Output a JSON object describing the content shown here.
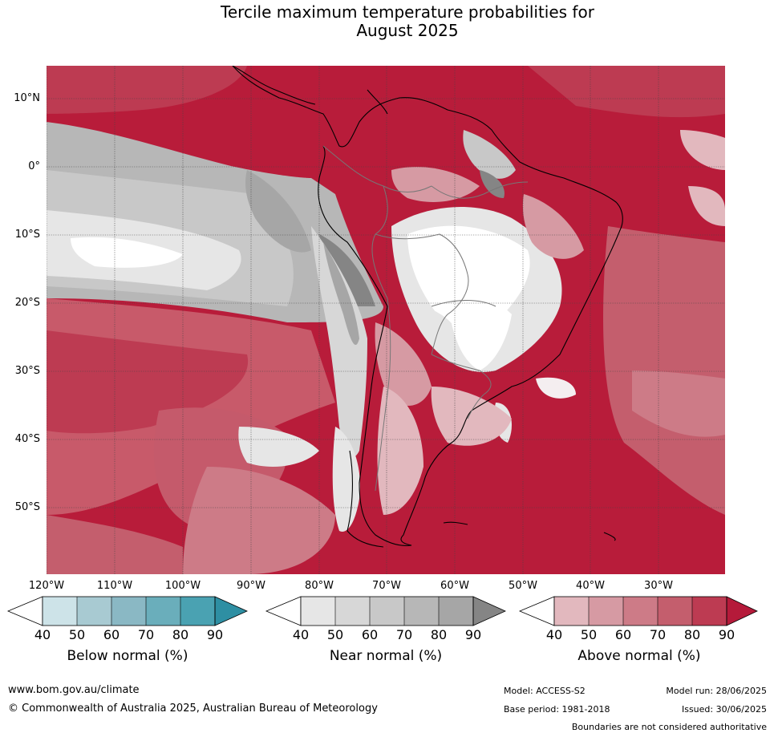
{
  "header": {
    "title_line1": "Tercile maximum temperature probabilities for",
    "title_line2": "August 2025"
  },
  "map": {
    "region": "South America",
    "lat_labels": [
      "10°N",
      "0°",
      "10°S",
      "20°S",
      "30°S",
      "40°S",
      "50°S"
    ],
    "lon_labels": [
      "120°W",
      "110°W",
      "100°W",
      "90°W",
      "80°W",
      "70°W",
      "60°W",
      "50°W",
      "40°W",
      "30°W"
    ],
    "dominant_category": "Above normal"
  },
  "legends": [
    {
      "title": "Below normal (%)",
      "ticks": [
        "40",
        "50",
        "60",
        "70",
        "80",
        "90"
      ],
      "colors": [
        "#ffffff",
        "#cde3e8",
        "#a8cad2",
        "#8ab8c4",
        "#6aaebb",
        "#4aa2b2",
        "#2e8fa3"
      ]
    },
    {
      "title": "Near normal (%)",
      "ticks": [
        "40",
        "50",
        "60",
        "70",
        "80",
        "90"
      ],
      "colors": [
        "#ffffff",
        "#e6e6e6",
        "#d7d7d7",
        "#c8c8c8",
        "#b7b7b7",
        "#a6a6a6",
        "#858585"
      ]
    },
    {
      "title": "Above normal (%)",
      "ticks": [
        "40",
        "50",
        "60",
        "70",
        "80",
        "90"
      ],
      "colors": [
        "#ffffff",
        "#e2b8be",
        "#d69aa3",
        "#cd7b87",
        "#c45e6d",
        "#bd3b52",
        "#b51a3a"
      ]
    }
  ],
  "footer": {
    "website": "www.bom.gov.au/climate",
    "copyright": "© Commonwealth of Australia 2025, Australian Bureau of Meteorology",
    "model": "Model: ACCESS-S2",
    "base_period": "Base period: 1981-2018",
    "model_run": "Model run: 28/06/2025",
    "issued": "Issued: 30/06/2025",
    "disclaimer": "Boundaries are not considered authoritative"
  }
}
